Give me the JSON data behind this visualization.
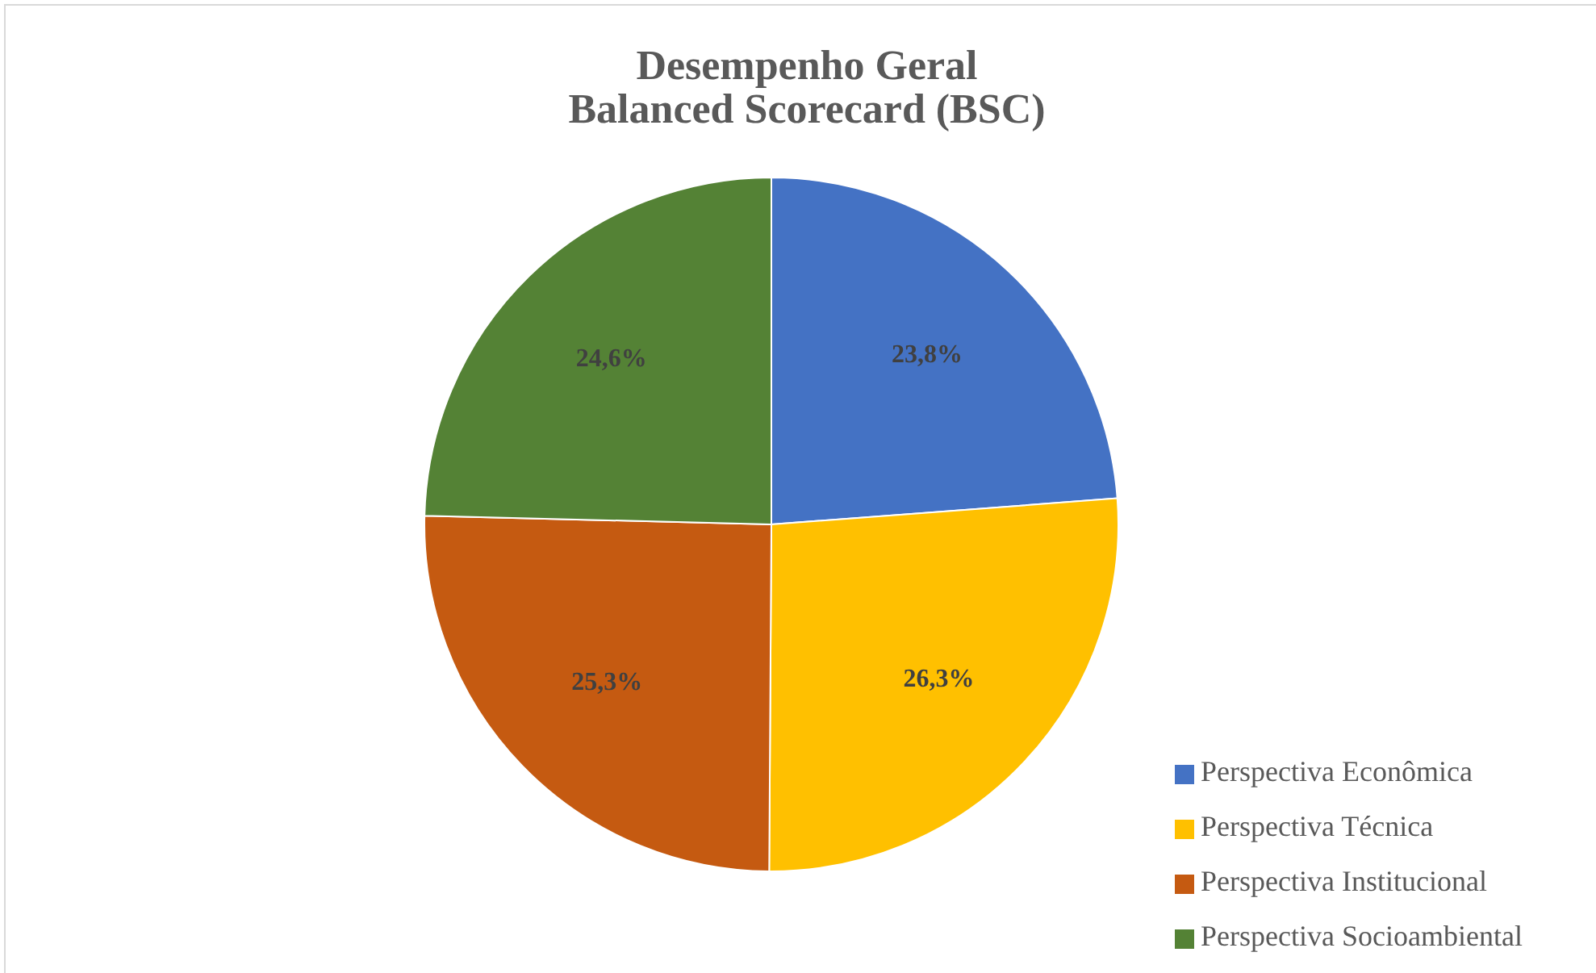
{
  "chart_data": {
    "type": "pie",
    "title": "Desempenho Geral\nBalanced Scorecard (BSC)",
    "categories": [
      "Perspectiva Econômica",
      "Perspectiva Técnica",
      "Perspectiva Institucional",
      "Perspectiva Socioambiental"
    ],
    "values": [
      23.8,
      26.3,
      25.3,
      24.6
    ],
    "colors": [
      "#4472c4",
      "#ffc000",
      "#c55a11",
      "#548235"
    ],
    "value_labels": [
      "23,8%",
      "26,3%",
      "25,3%",
      "24,6%"
    ],
    "legend": "bottom right"
  }
}
